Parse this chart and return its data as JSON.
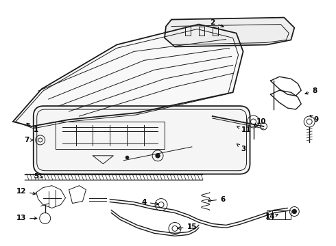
{
  "background_color": "#ffffff",
  "line_color": "#1a1a1a",
  "fig_width": 4.9,
  "fig_height": 3.6,
  "dpi": 100
}
